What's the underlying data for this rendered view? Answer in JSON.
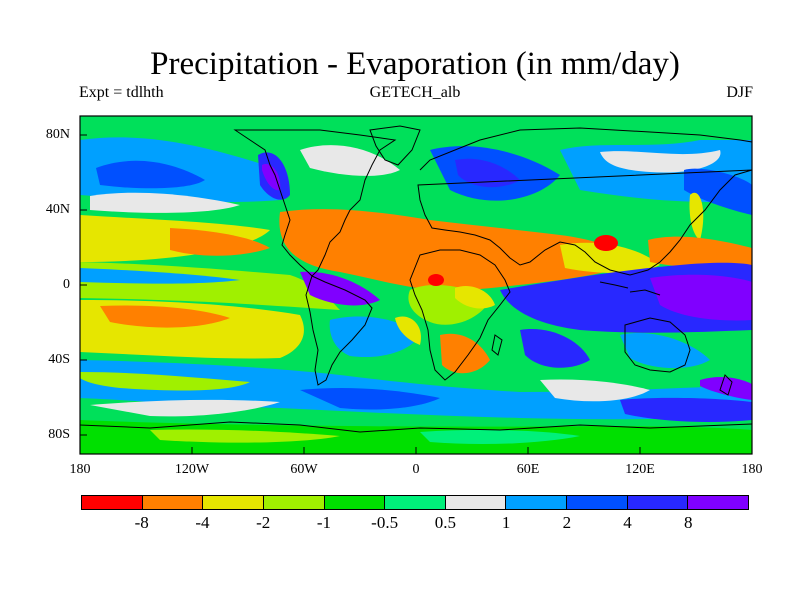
{
  "header": {
    "title": "Precipitation - Evaporation (in mm/day)",
    "experiment": "Expt = tdlhth",
    "dataset": "GETECH_alb",
    "season": "DJF"
  },
  "map": {
    "projection": "cylindrical equidistant",
    "lon_ticks": [
      "180",
      "120W",
      "60W",
      "0",
      "60E",
      "120E",
      "180"
    ],
    "lat_ticks": [
      "80N",
      "40N",
      "0",
      "40S",
      "80S"
    ],
    "ocean_color": "#00e05a",
    "coastline_color": "#000000"
  },
  "colorbar": {
    "colors": [
      "#ff0000",
      "#ff8000",
      "#e6e600",
      "#a0f000",
      "#00e000",
      "#00f07a",
      "#e8e8e8",
      "#00a0ff",
      "#0050ff",
      "#2828ff",
      "#8000ff"
    ],
    "labels": [
      "-8",
      "-4",
      "-2",
      "-1",
      "-0.5",
      "0.5",
      "1",
      "2",
      "4",
      "8"
    ]
  }
}
